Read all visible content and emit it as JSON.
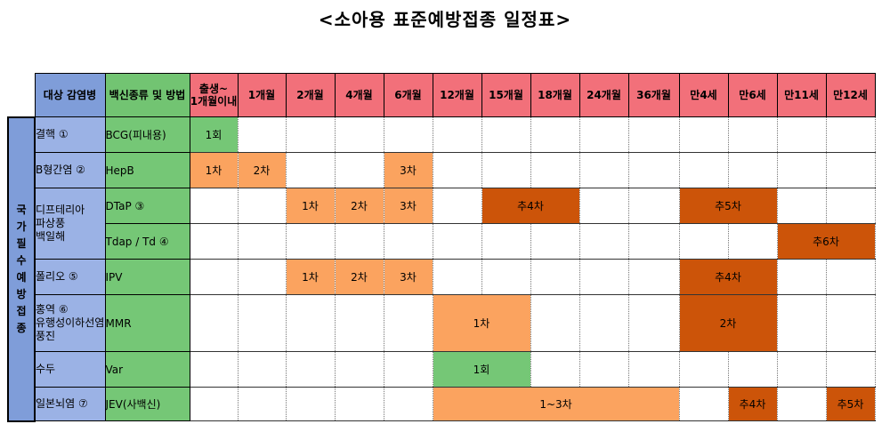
{
  "title": "<소아용 표준예방접종 일정표>",
  "headers": {
    "disease": "대상 감염병",
    "vaccine": "백신종류 및 방법",
    "ages": [
      "출생~\n1개월이내",
      "1개월",
      "2개월",
      "4개월",
      "6개월",
      "12개월",
      "15개월",
      "18개월",
      "24개월",
      "36개월",
      "만4세",
      "만6세",
      "만11세",
      "만12세"
    ]
  },
  "national_label": [
    "국",
    "가",
    "필",
    "수",
    "예",
    "방",
    "접",
    "종"
  ],
  "diseases": {
    "tb": "결핵 ①",
    "hepb": "B형간염 ②",
    "dtp": "디프테리아\n파상풍\n백일해",
    "polio": "폴리오 ⑤",
    "mmr": "홍역 ⑥\n유행성이하선염\n풍진",
    "var": "수두",
    "jev": "일본뇌염 ⑦"
  },
  "vaccines": {
    "bcg": "BCG(피내용)",
    "hepb": "HepB",
    "dtap": "DTaP ③",
    "tdap": "Tdap / Td ④",
    "ipv": "IPV",
    "mmr": "MMR",
    "var": "Var",
    "jev": "JEV(사백신)"
  },
  "doses": {
    "bcg_0": "1회",
    "hepb_0": "1차",
    "hepb_1": "2차",
    "hepb_6": "3차",
    "dtap_2": "1차",
    "dtap_4": "2차",
    "dtap_6": "3차",
    "dtap_15": "추4차",
    "dtap_4y": "추5차",
    "tdap_11": "추6차",
    "ipv_2": "1차",
    "ipv_4": "2차",
    "ipv_6": "3차",
    "ipv_4y": "추4차",
    "mmr_12": "1차",
    "mmr_4y": "2차",
    "var_12": "1회",
    "jev_12": "1~3차",
    "jev_6y": "추4차",
    "jev_12y": "추5차"
  },
  "colors": {
    "header_blue": "#7f9dd9",
    "header_green": "#72c472",
    "header_age": "#f2707a",
    "light_dose": "#fba35f",
    "dark_dose": "#cc5409",
    "green_dose": "#75c776"
  }
}
